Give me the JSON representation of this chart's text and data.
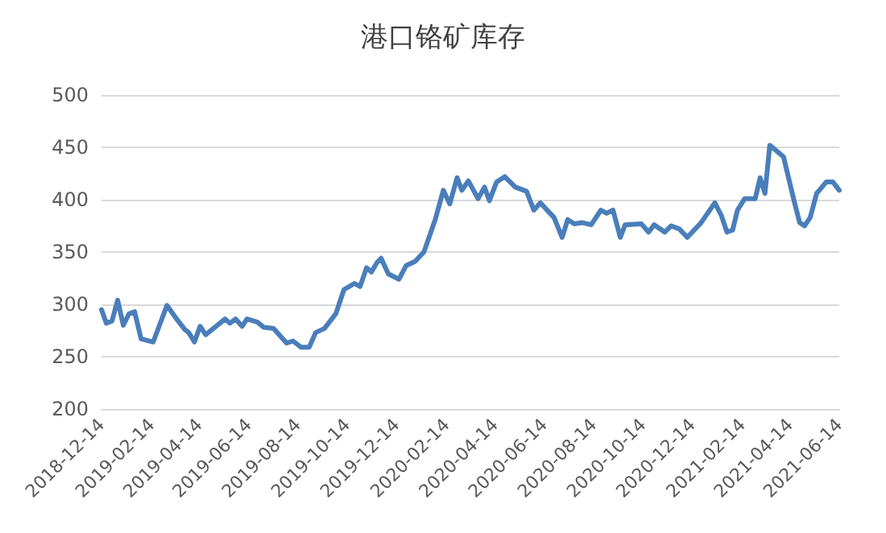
{
  "chart_data": {
    "type": "line",
    "title": "港口铬矿库存",
    "x": [
      "2018-12-14",
      "2018-12-20",
      "2018-12-27",
      "2019-01-03",
      "2019-01-10",
      "2019-01-17",
      "2019-01-24",
      "2019-02-01",
      "2019-02-16",
      "2019-03-05",
      "2019-03-17",
      "2019-03-27",
      "2019-04-01",
      "2019-04-08",
      "2019-04-15",
      "2019-04-22",
      "2019-05-16",
      "2019-05-22",
      "2019-05-29",
      "2019-06-06",
      "2019-06-12",
      "2019-06-25",
      "2019-07-03",
      "2019-07-15",
      "2019-07-31",
      "2019-08-08",
      "2019-08-18",
      "2019-08-28",
      "2019-09-05",
      "2019-09-16",
      "2019-09-30",
      "2019-10-10",
      "2019-10-23",
      "2019-10-30",
      "2019-11-07",
      "2019-11-13",
      "2019-11-20",
      "2019-11-25",
      "2019-12-04",
      "2019-12-17",
      "2019-12-26",
      "2020-01-06",
      "2020-01-17",
      "2020-01-31",
      "2020-02-10",
      "2020-02-18",
      "2020-02-27",
      "2020-03-04",
      "2020-03-12",
      "2020-03-24",
      "2020-04-01",
      "2020-04-07",
      "2020-04-16",
      "2020-04-26",
      "2020-05-09",
      "2020-05-23",
      "2020-06-01",
      "2020-06-09",
      "2020-06-26",
      "2020-07-06",
      "2020-07-13",
      "2020-07-21",
      "2020-07-31",
      "2020-08-11",
      "2020-08-23",
      "2020-08-30",
      "2020-09-07",
      "2020-09-16",
      "2020-09-22",
      "2020-10-12",
      "2020-10-21",
      "2020-10-28",
      "2020-11-10",
      "2020-11-18",
      "2020-11-28",
      "2020-12-08",
      "2020-12-25",
      "2021-01-11",
      "2021-01-19",
      "2021-01-26",
      "2021-02-02",
      "2021-02-08",
      "2021-02-17",
      "2021-03-02",
      "2021-03-08",
      "2021-03-14",
      "2021-03-20",
      "2021-04-06",
      "2021-04-19",
      "2021-04-26",
      "2021-05-02",
      "2021-05-09",
      "2021-05-17",
      "2021-05-29",
      "2021-06-06",
      "2021-06-14"
    ],
    "series": [
      {
        "color": "#4a7ebb",
        "values": [
          295,
          282,
          284,
          304,
          280,
          291,
          293,
          267,
          264,
          299,
          286,
          276,
          273,
          264,
          279,
          271,
          286,
          282,
          286,
          279,
          286,
          283,
          278,
          277,
          263,
          265,
          259,
          259,
          273,
          277,
          291,
          314,
          320,
          317,
          335,
          331,
          340,
          344,
          329,
          324,
          337,
          341,
          350,
          381,
          409,
          396,
          421,
          409,
          418,
          401,
          412,
          399,
          417,
          422,
          412,
          408,
          390,
          397,
          383,
          364,
          381,
          377,
          378,
          376,
          390,
          387,
          390,
          364,
          376,
          377,
          369,
          376,
          369,
          375,
          372,
          364,
          378,
          397,
          385,
          369,
          371,
          390,
          401,
          401,
          421,
          406,
          452,
          441,
          399,
          378,
          375,
          383,
          406,
          417,
          417,
          409
        ]
      }
    ],
    "xlim": [
      "2018-12-14",
      "2021-06-14"
    ],
    "xticks": [
      "2018-12-14",
      "2019-02-14",
      "2019-04-14",
      "2019-06-14",
      "2019-08-14",
      "2019-10-14",
      "2019-12-14",
      "2020-02-14",
      "2020-04-14",
      "2020-06-14",
      "2020-08-14",
      "2020-10-14",
      "2020-12-14",
      "2021-02-14",
      "2021-04-14",
      "2021-06-14"
    ],
    "ylim": [
      200,
      500
    ],
    "yticks": [
      200,
      250,
      300,
      350,
      400,
      450,
      500
    ],
    "grid": "y",
    "marker": "none",
    "line_style": "solid"
  }
}
